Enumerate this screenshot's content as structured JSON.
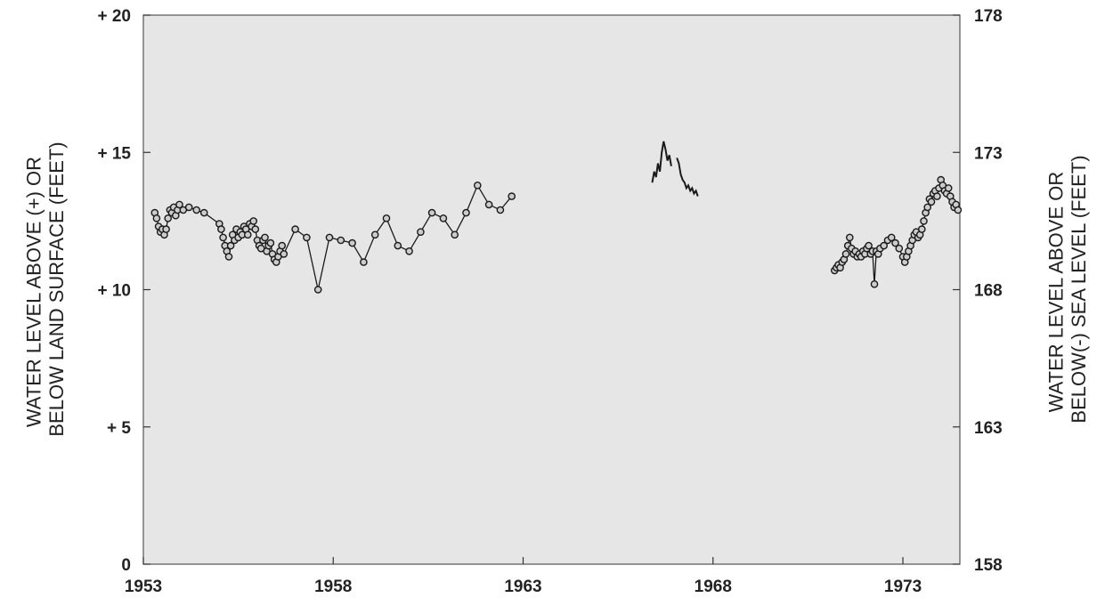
{
  "chart_data": {
    "type": "line",
    "title": "",
    "xlabel": "",
    "ylabel": "WATER LEVEL ABOVE (+) OR BELOW LAND SURFACE (FEET)",
    "ylabel_right": "WATER LEVEL ABOVE OR BELOW(-) SEA LEVEL (FEET)",
    "xlim": [
      1953,
      1974.5
    ],
    "ylim": [
      0,
      20
    ],
    "ylim_right": [
      158,
      178
    ],
    "x_ticks": [
      1953,
      1958,
      1963,
      1968,
      1973
    ],
    "x_tick_labels": [
      "1953",
      "1958",
      "1963",
      "1968",
      "1973"
    ],
    "y_ticks": [
      0,
      5,
      10,
      15,
      20
    ],
    "y_tick_labels": [
      "0",
      "+ 5",
      "+ 10",
      "+ 15",
      "+ 20"
    ],
    "y_right_ticks": [
      0,
      5,
      10,
      15,
      20
    ],
    "y_right_tick_labels": [
      "158",
      "163",
      "168",
      "173",
      "178"
    ],
    "grid": false,
    "legend": "none",
    "colors": {
      "background": "#e6e6e6",
      "line": "#1a1a1a",
      "marker_fill": "#cccccc"
    },
    "series": [
      {
        "markers": true,
        "points": [
          [
            1953.3,
            12.8
          ],
          [
            1953.35,
            12.6
          ],
          [
            1953.4,
            12.3
          ],
          [
            1953.45,
            12.1
          ],
          [
            1953.5,
            12.2
          ],
          [
            1953.55,
            12.0
          ],
          [
            1953.6,
            12.2
          ],
          [
            1953.65,
            12.6
          ],
          [
            1953.7,
            12.9
          ],
          [
            1953.75,
            12.8
          ],
          [
            1953.8,
            13.0
          ],
          [
            1953.85,
            12.7
          ],
          [
            1953.9,
            12.9
          ],
          [
            1953.95,
            13.1
          ],
          [
            1954.05,
            12.9
          ],
          [
            1954.2,
            13.0
          ],
          [
            1954.4,
            12.9
          ],
          [
            1954.6,
            12.8
          ],
          [
            1955.0,
            12.4
          ],
          [
            1955.05,
            12.2
          ],
          [
            1955.1,
            11.9
          ],
          [
            1955.15,
            11.6
          ],
          [
            1955.2,
            11.4
          ],
          [
            1955.25,
            11.2
          ],
          [
            1955.3,
            11.6
          ],
          [
            1955.35,
            12.0
          ],
          [
            1955.4,
            11.8
          ],
          [
            1955.45,
            12.2
          ],
          [
            1955.5,
            11.9
          ],
          [
            1955.55,
            12.1
          ],
          [
            1955.6,
            12.0
          ],
          [
            1955.65,
            12.3
          ],
          [
            1955.7,
            12.2
          ],
          [
            1955.75,
            12.0
          ],
          [
            1955.8,
            12.4
          ],
          [
            1955.85,
            12.3
          ],
          [
            1955.9,
            12.5
          ],
          [
            1955.95,
            12.2
          ],
          [
            1956.0,
            11.8
          ],
          [
            1956.05,
            11.6
          ],
          [
            1956.1,
            11.5
          ],
          [
            1956.15,
            11.8
          ],
          [
            1956.2,
            11.9
          ],
          [
            1956.25,
            11.4
          ],
          [
            1956.3,
            11.6
          ],
          [
            1956.35,
            11.7
          ],
          [
            1956.4,
            11.3
          ],
          [
            1956.45,
            11.1
          ],
          [
            1956.5,
            11.0
          ],
          [
            1956.55,
            11.2
          ],
          [
            1956.6,
            11.4
          ],
          [
            1956.65,
            11.6
          ],
          [
            1956.7,
            11.3
          ],
          [
            1957.0,
            12.2
          ],
          [
            1957.3,
            11.9
          ],
          [
            1957.6,
            10.0
          ],
          [
            1957.9,
            11.9
          ],
          [
            1958.2,
            11.8
          ],
          [
            1958.5,
            11.7
          ],
          [
            1958.8,
            11.0
          ],
          [
            1959.1,
            12.0
          ],
          [
            1959.4,
            12.6
          ],
          [
            1959.7,
            11.6
          ],
          [
            1960.0,
            11.4
          ],
          [
            1960.3,
            12.1
          ],
          [
            1960.6,
            12.8
          ],
          [
            1960.9,
            12.6
          ],
          [
            1961.2,
            12.0
          ],
          [
            1961.5,
            12.8
          ],
          [
            1961.8,
            13.8
          ],
          [
            1962.1,
            13.1
          ],
          [
            1962.4,
            12.9
          ],
          [
            1962.7,
            13.4
          ]
        ]
      },
      {
        "markers": false,
        "points": [
          [
            1966.4,
            13.9
          ],
          [
            1966.45,
            14.3
          ],
          [
            1966.5,
            14.1
          ],
          [
            1966.55,
            14.6
          ],
          [
            1966.6,
            14.3
          ],
          [
            1966.65,
            15.0
          ],
          [
            1966.7,
            15.4
          ],
          [
            1966.75,
            15.1
          ],
          [
            1966.8,
            14.7
          ],
          [
            1966.85,
            14.9
          ],
          [
            1966.9,
            14.5
          ]
        ]
      },
      {
        "markers": false,
        "points": [
          [
            1967.05,
            14.8
          ],
          [
            1967.1,
            14.6
          ],
          [
            1967.15,
            14.2
          ],
          [
            1967.2,
            14.0
          ],
          [
            1967.25,
            13.9
          ],
          [
            1967.3,
            13.7
          ],
          [
            1967.35,
            13.8
          ],
          [
            1967.4,
            13.6
          ],
          [
            1967.45,
            13.7
          ],
          [
            1967.5,
            13.5
          ],
          [
            1967.55,
            13.6
          ],
          [
            1967.6,
            13.4
          ]
        ]
      },
      {
        "markers": true,
        "points": [
          [
            1971.2,
            10.7
          ],
          [
            1971.25,
            10.8
          ],
          [
            1971.3,
            10.9
          ],
          [
            1971.35,
            10.8
          ],
          [
            1971.4,
            11.0
          ],
          [
            1971.45,
            11.1
          ],
          [
            1971.5,
            11.3
          ],
          [
            1971.55,
            11.6
          ],
          [
            1971.6,
            11.9
          ],
          [
            1971.65,
            11.5
          ],
          [
            1971.7,
            11.3
          ],
          [
            1971.75,
            11.4
          ],
          [
            1971.8,
            11.2
          ],
          [
            1971.85,
            11.3
          ],
          [
            1971.9,
            11.2
          ],
          [
            1971.95,
            11.4
          ],
          [
            1972.0,
            11.3
          ],
          [
            1972.05,
            11.5
          ],
          [
            1972.1,
            11.6
          ],
          [
            1972.15,
            11.3
          ],
          [
            1972.2,
            11.4
          ],
          [
            1972.25,
            10.2
          ],
          [
            1972.3,
            11.4
          ],
          [
            1972.35,
            11.3
          ],
          [
            1972.4,
            11.5
          ],
          [
            1972.5,
            11.6
          ],
          [
            1972.6,
            11.8
          ],
          [
            1972.7,
            11.9
          ],
          [
            1972.8,
            11.7
          ],
          [
            1972.9,
            11.5
          ],
          [
            1973.0,
            11.2
          ],
          [
            1973.05,
            11.0
          ],
          [
            1973.1,
            11.2
          ],
          [
            1973.15,
            11.4
          ],
          [
            1973.2,
            11.6
          ],
          [
            1973.25,
            11.8
          ],
          [
            1973.3,
            12.0
          ],
          [
            1973.35,
            12.1
          ],
          [
            1973.4,
            11.9
          ],
          [
            1973.45,
            12.0
          ],
          [
            1973.5,
            12.2
          ],
          [
            1973.55,
            12.5
          ],
          [
            1973.6,
            12.8
          ],
          [
            1973.65,
            13.0
          ],
          [
            1973.7,
            13.3
          ],
          [
            1973.75,
            13.2
          ],
          [
            1973.8,
            13.5
          ],
          [
            1973.85,
            13.6
          ],
          [
            1973.9,
            13.4
          ],
          [
            1973.95,
            13.7
          ],
          [
            1974.0,
            14.0
          ],
          [
            1974.05,
            13.8
          ],
          [
            1974.1,
            13.6
          ],
          [
            1974.15,
            13.5
          ],
          [
            1974.2,
            13.7
          ],
          [
            1974.25,
            13.4
          ],
          [
            1974.3,
            13.2
          ],
          [
            1974.35,
            13.0
          ],
          [
            1974.4,
            13.1
          ],
          [
            1974.45,
            12.9
          ]
        ]
      }
    ]
  }
}
